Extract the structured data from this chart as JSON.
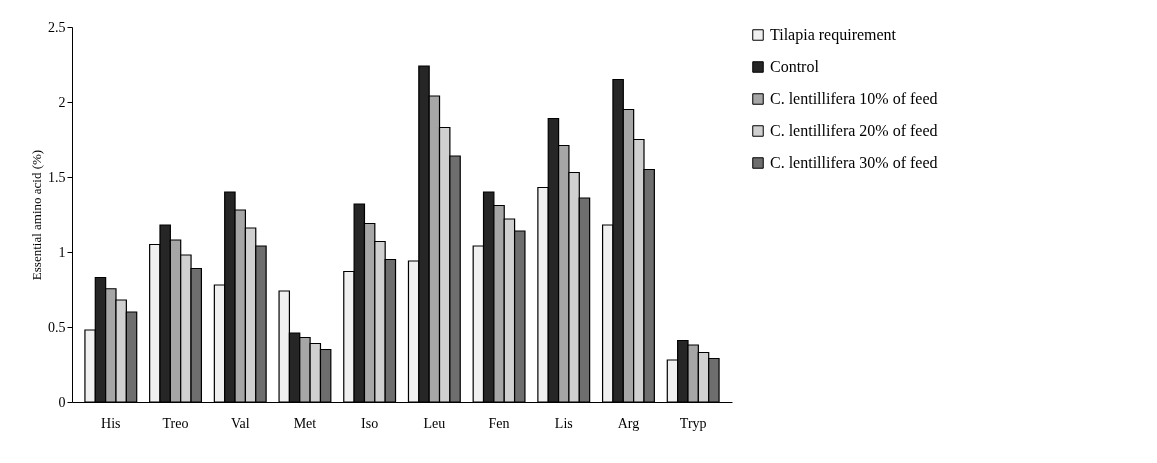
{
  "chart_data": {
    "type": "bar",
    "ylabel": "Essential amino acid (%)",
    "categories": [
      "His",
      "Treo",
      "Val",
      "Met",
      "Iso",
      "Leu",
      "Fen",
      "Lis",
      "Arg",
      "Tryp"
    ],
    "series": [
      {
        "name": "Tilapia requirement",
        "color": "#f0f0f0",
        "values": [
          0.48,
          1.05,
          0.78,
          0.74,
          0.87,
          0.94,
          1.04,
          1.43,
          1.18,
          0.28
        ]
      },
      {
        "name": "Control",
        "color": "#262626",
        "values": [
          0.83,
          1.18,
          1.4,
          0.46,
          1.32,
          2.24,
          1.4,
          1.89,
          2.15,
          0.41
        ]
      },
      {
        "name": "C. lentillifera 10% of feed",
        "color": "#a6a6a6",
        "values": [
          0.755,
          1.08,
          1.28,
          0.43,
          1.19,
          2.04,
          1.31,
          1.71,
          1.95,
          0.38
        ]
      },
      {
        "name": "C. lentillifera 20% of feed",
        "color": "#d0d0d0",
        "values": [
          0.68,
          0.98,
          1.16,
          0.39,
          1.07,
          1.83,
          1.22,
          1.53,
          1.75,
          0.33
        ]
      },
      {
        "name": "C. lentillifera 30% of feed",
        "color": "#6e6e6e",
        "values": [
          0.6,
          0.89,
          1.04,
          0.35,
          0.95,
          1.64,
          1.14,
          1.36,
          1.55,
          0.29
        ]
      }
    ],
    "ylim": [
      0,
      2.5
    ],
    "yticks": [
      0,
      0.5,
      1,
      1.5,
      2,
      2.5
    ],
    "grid": false,
    "legend": "right"
  }
}
